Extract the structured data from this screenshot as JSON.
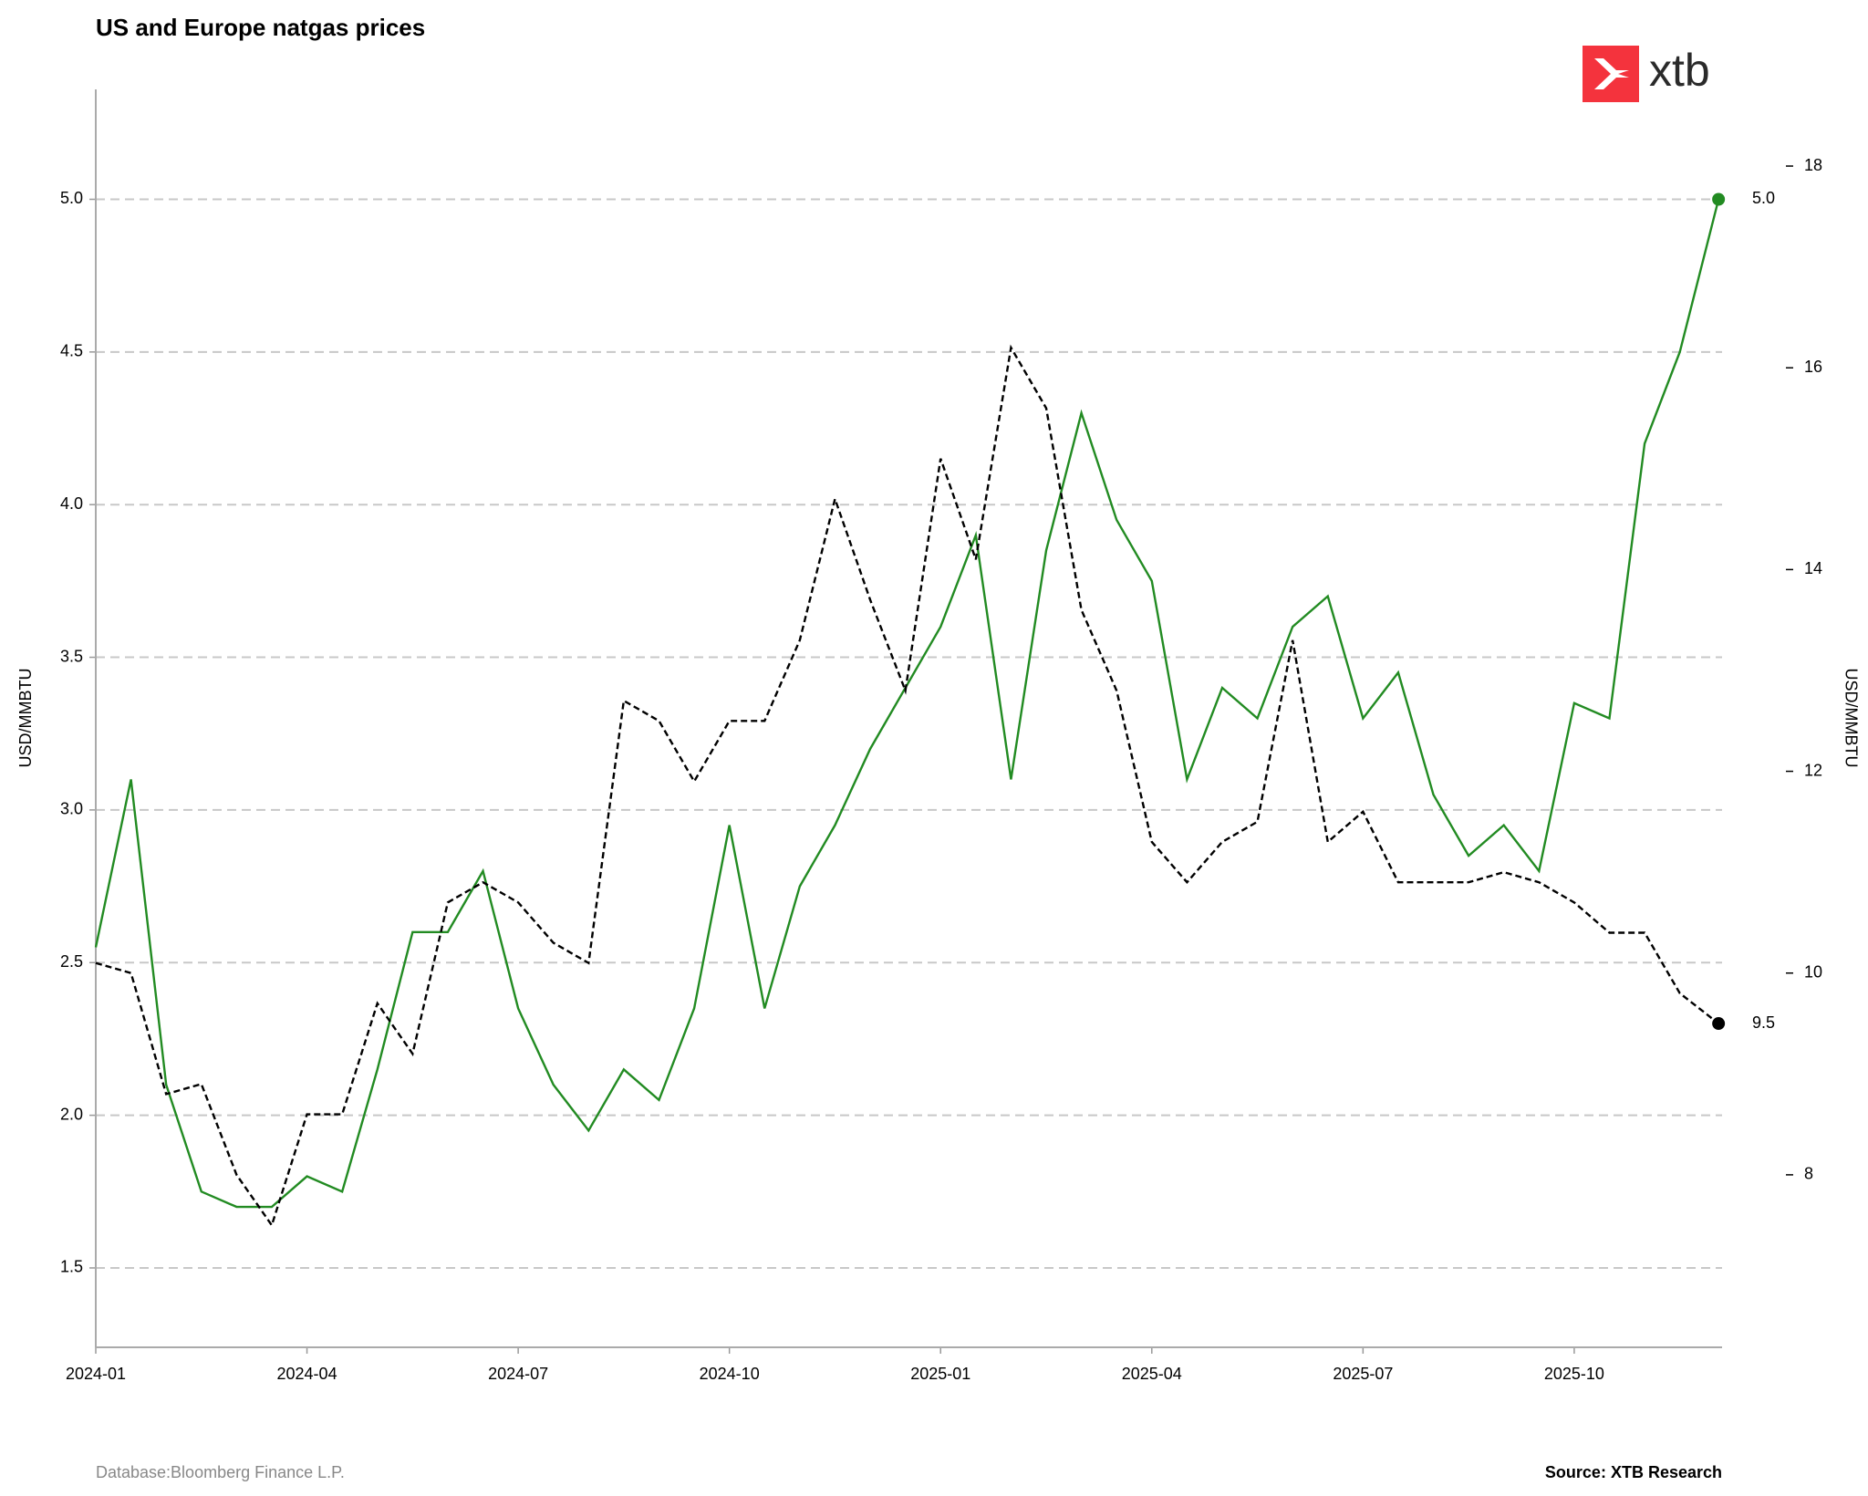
{
  "chart_data": {
    "type": "line",
    "title": "US and Europe natgas prices",
    "ylabel": "USD/MMBTU",
    "y2label": "USD/MMBTU",
    "logo": "xtb",
    "source_note": "Database:Bloomberg Finance L.P.",
    "source": "Source: XTB Research",
    "x": [
      0,
      0.5,
      1,
      1.5,
      2,
      2.5,
      3,
      3.5,
      4,
      4.5,
      5,
      5.5,
      6,
      6.5,
      7,
      7.5,
      8,
      8.5,
      9,
      9.5,
      10,
      10.5,
      11,
      11.5,
      12,
      12.5,
      13,
      13.5,
      14,
      14.5,
      15,
      15.5,
      16,
      16.5,
      17,
      17.5,
      18,
      18.5,
      19,
      19.5,
      20,
      20.5,
      21,
      21.5,
      22,
      22.5,
      23.05
    ],
    "xlim": [
      0,
      23.1
    ],
    "xticks": [
      {
        "value": 0,
        "label": "2024-01"
      },
      {
        "value": 3,
        "label": "2024-04"
      },
      {
        "value": 6,
        "label": "2024-07"
      },
      {
        "value": 9,
        "label": "2024-10"
      },
      {
        "value": 12,
        "label": "2025-01"
      },
      {
        "value": 15,
        "label": "2025-04"
      },
      {
        "value": 18,
        "label": "2025-07"
      },
      {
        "value": 21,
        "label": "2025-10"
      }
    ],
    "ylim": [
      1.24,
      5.36
    ],
    "yticks": [
      {
        "value": 1.5,
        "label": "1.5"
      },
      {
        "value": 2,
        "label": "2.0"
      },
      {
        "value": 2.5,
        "label": "2.5"
      },
      {
        "value": 3,
        "label": "3.0"
      },
      {
        "value": 3.5,
        "label": "3.5"
      },
      {
        "value": 4,
        "label": "4.0"
      },
      {
        "value": 4.5,
        "label": "4.5"
      },
      {
        "value": 5,
        "label": "5.0"
      }
    ],
    "y2lim": [
      6.29,
      18.76
    ],
    "y2ticks": [
      8,
      10,
      12,
      14,
      16,
      18
    ],
    "grid": true,
    "series": [
      {
        "color": "#228b22",
        "dash": false,
        "values": [
          2.55,
          3.1,
          2.1,
          1.75,
          1.7,
          1.7,
          1.8,
          1.75,
          2.15,
          2.6,
          2.6,
          2.8,
          2.35,
          2.1,
          1.95,
          2.15,
          2.05,
          2.35,
          2.95,
          2.35,
          2.75,
          2.95,
          3.2,
          3.4,
          3.6,
          3.9,
          3.1,
          3.85,
          4.3,
          3.95,
          3.75,
          3.1,
          3.4,
          3.3,
          3.6,
          3.7,
          3.3,
          3.45,
          3.05,
          2.85,
          2.95,
          2.8,
          3.35,
          3.3,
          4.2,
          4.5,
          5.0
        ],
        "value_labels": [
          null,
          null,
          null,
          null,
          null,
          null,
          null,
          null,
          null,
          null,
          null,
          null,
          null,
          null,
          null,
          null,
          null,
          null,
          null,
          null,
          null,
          null,
          null,
          null,
          null,
          null,
          null,
          null,
          null,
          null,
          null,
          null,
          null,
          null,
          null,
          null,
          null,
          null,
          null,
          null,
          null,
          null,
          null,
          null,
          null,
          null,
          "5.0"
        ]
      },
      {
        "color": "#000000",
        "dash": true,
        "axis": "y2",
        "values": [
          10.1,
          10.0,
          8.8,
          8.9,
          8.0,
          7.5,
          8.6,
          8.6,
          9.7,
          9.2,
          10.7,
          10.9,
          10.7,
          10.3,
          10.1,
          12.7,
          12.5,
          11.9,
          12.5,
          12.5,
          13.3,
          14.7,
          13.7,
          12.8,
          15.1,
          14.1,
          16.2,
          15.6,
          13.6,
          12.8,
          11.3,
          10.9,
          11.3,
          11.5,
          13.3,
          11.3,
          11.6,
          10.9,
          10.9,
          10.9,
          11.0,
          10.9,
          10.7,
          10.4,
          10.4,
          9.8,
          9.5
        ],
        "value_labels": [
          null,
          null,
          null,
          null,
          null,
          null,
          null,
          null,
          null,
          null,
          null,
          null,
          null,
          null,
          null,
          null,
          null,
          null,
          null,
          null,
          null,
          null,
          null,
          null,
          null,
          null,
          null,
          null,
          null,
          null,
          null,
          null,
          null,
          null,
          null,
          null,
          null,
          null,
          null,
          null,
          null,
          null,
          null,
          null,
          null,
          null,
          "9.5"
        ]
      }
    ]
  }
}
